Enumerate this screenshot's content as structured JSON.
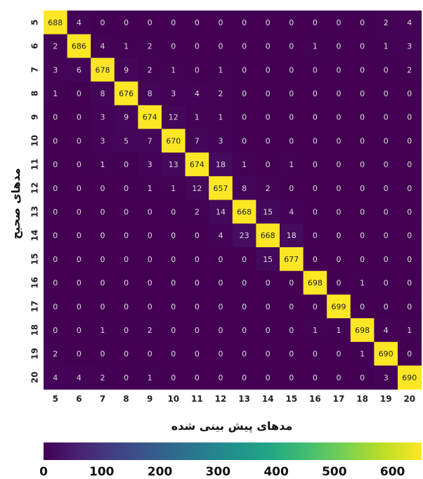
{
  "chart_data": {
    "type": "heatmap",
    "title": "",
    "xlabel": "مدهای پیش بینی شده",
    "ylabel": "مدهای صحیح",
    "x_categories": [
      "5",
      "6",
      "7",
      "8",
      "9",
      "10",
      "11",
      "12",
      "13",
      "14",
      "15",
      "16",
      "17",
      "18",
      "19",
      "20"
    ],
    "y_categories": [
      "5",
      "6",
      "7",
      "8",
      "9",
      "10",
      "11",
      "12",
      "13",
      "14",
      "15",
      "16",
      "17",
      "18",
      "19",
      "20"
    ],
    "values": [
      [
        688,
        4,
        0,
        0,
        0,
        0,
        0,
        0,
        0,
        0,
        0,
        0,
        0,
        0,
        2,
        4
      ],
      [
        2,
        686,
        4,
        1,
        2,
        0,
        0,
        0,
        0,
        0,
        0,
        1,
        0,
        0,
        1,
        3
      ],
      [
        3,
        6,
        678,
        9,
        2,
        1,
        0,
        1,
        0,
        0,
        0,
        0,
        0,
        0,
        0,
        2
      ],
      [
        1,
        0,
        8,
        676,
        8,
        3,
        4,
        2,
        0,
        0,
        0,
        0,
        0,
        0,
        0,
        0
      ],
      [
        0,
        0,
        3,
        9,
        674,
        12,
        1,
        1,
        0,
        0,
        0,
        0,
        0,
        0,
        0,
        0
      ],
      [
        0,
        0,
        3,
        5,
        7,
        670,
        7,
        3,
        0,
        0,
        0,
        0,
        0,
        0,
        0,
        0
      ],
      [
        0,
        0,
        1,
        0,
        3,
        13,
        674,
        18,
        1,
        0,
        1,
        0,
        0,
        0,
        0,
        0
      ],
      [
        0,
        0,
        0,
        0,
        1,
        1,
        12,
        657,
        8,
        2,
        0,
        0,
        0,
        0,
        0,
        0
      ],
      [
        0,
        0,
        0,
        0,
        0,
        0,
        2,
        14,
        668,
        15,
        4,
        0,
        0,
        0,
        0,
        0
      ],
      [
        0,
        0,
        0,
        0,
        0,
        0,
        0,
        4,
        23,
        668,
        18,
        0,
        0,
        0,
        0,
        0
      ],
      [
        0,
        0,
        0,
        0,
        0,
        0,
        0,
        0,
        0,
        15,
        677,
        0,
        0,
        0,
        0,
        0
      ],
      [
        0,
        0,
        0,
        0,
        0,
        0,
        0,
        0,
        0,
        0,
        0,
        698,
        0,
        1,
        0,
        0
      ],
      [
        0,
        0,
        0,
        0,
        0,
        0,
        0,
        0,
        0,
        0,
        0,
        0,
        699,
        0,
        0,
        0
      ],
      [
        0,
        0,
        1,
        0,
        2,
        0,
        0,
        0,
        0,
        0,
        0,
        1,
        1,
        698,
        4,
        1
      ],
      [
        2,
        0,
        0,
        0,
        0,
        0,
        0,
        0,
        0,
        0,
        0,
        0,
        0,
        1,
        690,
        0
      ],
      [
        4,
        4,
        2,
        0,
        1,
        0,
        0,
        0,
        0,
        0,
        0,
        0,
        0,
        0,
        3,
        690
      ]
    ],
    "colormap": "viridis",
    "colorbar": {
      "min": 0,
      "max": 650,
      "ticks": [
        0,
        100,
        200,
        300,
        400,
        500,
        600
      ]
    }
  }
}
